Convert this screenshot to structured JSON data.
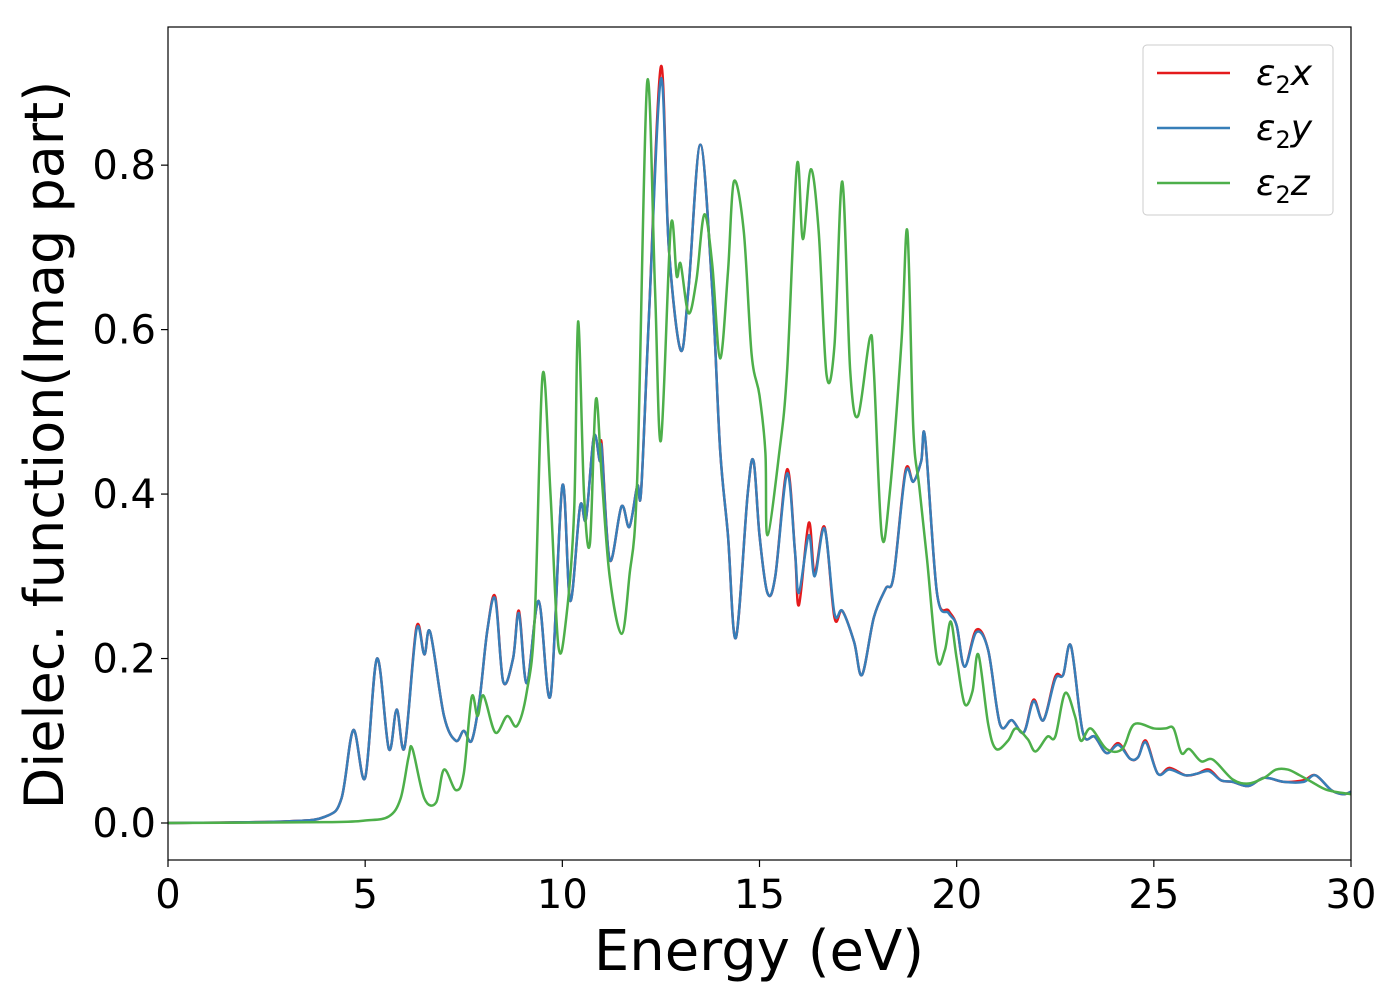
{
  "chart_data": {
    "type": "line",
    "title": "",
    "xlabel": "Energy (eV)",
    "ylabel": "Dielec. function(Imag part)",
    "xlim": [
      0,
      30
    ],
    "ylim": [
      -0.045,
      0.968
    ],
    "xticks": [
      0,
      5,
      10,
      15,
      20,
      25,
      30
    ],
    "xtick_labels": [
      "0",
      "5",
      "10",
      "15",
      "20",
      "25",
      "30"
    ],
    "yticks": [
      0.0,
      0.2,
      0.4,
      0.6,
      0.8
    ],
    "ytick_labels": [
      "0.0",
      "0.2",
      "0.4",
      "0.6",
      "0.8"
    ],
    "grid": false,
    "legend_position": "top-right",
    "series": [
      {
        "name": "ε2x",
        "label_base": "ε",
        "label_sub": "2",
        "label_var": "x",
        "color": "#e41a1c",
        "x": [
          0,
          3,
          4,
          4.4,
          4.7,
          5.0,
          5.3,
          5.6,
          5.8,
          6.0,
          6.3,
          6.5,
          6.65,
          7.0,
          7.3,
          7.5,
          7.7,
          7.9,
          8.1,
          8.3,
          8.5,
          8.75,
          8.9,
          9.1,
          9.4,
          9.7,
          10.0,
          10.2,
          10.45,
          10.6,
          10.8,
          10.95,
          11.0,
          11.2,
          11.5,
          11.7,
          11.9,
          12.0,
          12.2,
          12.5,
          12.7,
          13.0,
          13.2,
          13.5,
          13.8,
          14.0,
          14.2,
          14.4,
          14.7,
          14.85,
          15.0,
          15.2,
          15.4,
          15.7,
          15.9,
          16.0,
          16.25,
          16.4,
          16.65,
          16.9,
          17.1,
          17.4,
          17.6,
          17.9,
          18.2,
          18.4,
          18.7,
          18.9,
          19.1,
          19.2,
          19.5,
          19.8,
          20.0,
          20.2,
          20.5,
          20.8,
          21.1,
          21.4,
          21.7,
          21.95,
          22.2,
          22.5,
          22.7,
          22.9,
          23.2,
          23.5,
          23.8,
          24.1,
          24.4,
          24.6,
          24.8,
          25.1,
          25.4,
          25.8,
          26.1,
          26.4,
          26.7,
          27.0,
          27.4,
          27.8,
          28.3,
          28.8,
          29.1,
          29.5,
          29.8,
          30
        ],
        "y": [
          0,
          0.002,
          0.008,
          0.03,
          0.113,
          0.055,
          0.2,
          0.09,
          0.138,
          0.092,
          0.238,
          0.205,
          0.232,
          0.13,
          0.1,
          0.112,
          0.1,
          0.15,
          0.235,
          0.275,
          0.172,
          0.2,
          0.258,
          0.17,
          0.27,
          0.155,
          0.41,
          0.27,
          0.385,
          0.37,
          0.47,
          0.44,
          0.46,
          0.32,
          0.385,
          0.36,
          0.41,
          0.405,
          0.62,
          0.92,
          0.7,
          0.575,
          0.65,
          0.825,
          0.65,
          0.455,
          0.35,
          0.225,
          0.4,
          0.44,
          0.35,
          0.28,
          0.3,
          0.43,
          0.33,
          0.265,
          0.365,
          0.305,
          0.36,
          0.25,
          0.258,
          0.22,
          0.18,
          0.25,
          0.285,
          0.3,
          0.428,
          0.415,
          0.44,
          0.468,
          0.28,
          0.258,
          0.24,
          0.19,
          0.235,
          0.21,
          0.12,
          0.125,
          0.11,
          0.15,
          0.125,
          0.178,
          0.18,
          0.215,
          0.11,
          0.105,
          0.085,
          0.097,
          0.078,
          0.08,
          0.1,
          0.06,
          0.067,
          0.058,
          0.06,
          0.065,
          0.052,
          0.05,
          0.045,
          0.055,
          0.05,
          0.052,
          0.058,
          0.04,
          0.035,
          0.038
        ]
      },
      {
        "name": "ε2y",
        "label_base": "ε",
        "label_sub": "2",
        "label_var": "y",
        "color": "#377eb8",
        "x": [
          0,
          3,
          4,
          4.4,
          4.7,
          5.0,
          5.3,
          5.6,
          5.8,
          6.0,
          6.3,
          6.5,
          6.65,
          7.0,
          7.3,
          7.5,
          7.7,
          7.9,
          8.1,
          8.3,
          8.5,
          8.75,
          8.9,
          9.1,
          9.4,
          9.7,
          10.0,
          10.2,
          10.45,
          10.6,
          10.8,
          10.95,
          11.0,
          11.2,
          11.5,
          11.7,
          11.9,
          12.0,
          12.2,
          12.5,
          12.7,
          13.0,
          13.2,
          13.5,
          13.8,
          14.0,
          14.2,
          14.4,
          14.7,
          14.85,
          15.0,
          15.2,
          15.4,
          15.7,
          15.9,
          16.0,
          16.25,
          16.4,
          16.65,
          16.9,
          17.1,
          17.4,
          17.6,
          17.9,
          18.2,
          18.4,
          18.7,
          18.9,
          19.1,
          19.2,
          19.5,
          19.8,
          20.0,
          20.2,
          20.5,
          20.8,
          21.1,
          21.4,
          21.7,
          21.95,
          22.2,
          22.5,
          22.7,
          22.9,
          23.2,
          23.5,
          23.8,
          24.1,
          24.4,
          24.6,
          24.8,
          25.1,
          25.4,
          25.8,
          26.1,
          26.4,
          26.7,
          27.0,
          27.4,
          27.8,
          28.3,
          28.8,
          29.1,
          29.5,
          29.8,
          30
        ],
        "y": [
          0,
          0.002,
          0.008,
          0.03,
          0.113,
          0.055,
          0.2,
          0.09,
          0.138,
          0.092,
          0.235,
          0.205,
          0.232,
          0.13,
          0.1,
          0.112,
          0.1,
          0.15,
          0.235,
          0.272,
          0.172,
          0.2,
          0.255,
          0.17,
          0.27,
          0.155,
          0.41,
          0.27,
          0.385,
          0.37,
          0.47,
          0.44,
          0.455,
          0.32,
          0.385,
          0.36,
          0.41,
          0.405,
          0.62,
          0.905,
          0.7,
          0.575,
          0.65,
          0.825,
          0.65,
          0.455,
          0.35,
          0.225,
          0.4,
          0.44,
          0.35,
          0.28,
          0.3,
          0.425,
          0.33,
          0.28,
          0.35,
          0.3,
          0.358,
          0.255,
          0.258,
          0.22,
          0.18,
          0.25,
          0.285,
          0.3,
          0.425,
          0.415,
          0.44,
          0.468,
          0.28,
          0.255,
          0.24,
          0.19,
          0.232,
          0.21,
          0.12,
          0.125,
          0.11,
          0.148,
          0.125,
          0.175,
          0.18,
          0.215,
          0.11,
          0.105,
          0.085,
          0.095,
          0.078,
          0.08,
          0.098,
          0.06,
          0.065,
          0.058,
          0.06,
          0.063,
          0.052,
          0.05,
          0.045,
          0.055,
          0.05,
          0.05,
          0.058,
          0.04,
          0.035,
          0.038
        ]
      },
      {
        "name": "ε2z",
        "label_base": "ε",
        "label_sub": "2",
        "label_var": "z",
        "color": "#4daf4a",
        "x": [
          0,
          4,
          5,
          5.6,
          5.9,
          6.1,
          6.2,
          6.5,
          6.8,
          7.0,
          7.3,
          7.5,
          7.7,
          7.85,
          8.0,
          8.3,
          8.6,
          8.85,
          9.1,
          9.3,
          9.5,
          9.7,
          9.9,
          10.1,
          10.3,
          10.4,
          10.55,
          10.7,
          10.85,
          11.0,
          11.2,
          11.5,
          11.7,
          11.9,
          12.15,
          12.35,
          12.5,
          12.75,
          12.9,
          13.0,
          13.2,
          13.4,
          13.6,
          13.8,
          14.0,
          14.2,
          14.35,
          14.6,
          14.8,
          15.0,
          15.15,
          15.2,
          15.5,
          15.7,
          15.95,
          16.1,
          16.3,
          16.5,
          16.7,
          16.9,
          17.1,
          17.3,
          17.5,
          17.8,
          17.9,
          18.1,
          18.3,
          18.6,
          18.75,
          18.9,
          19.05,
          19.25,
          19.5,
          19.7,
          19.85,
          20.0,
          20.2,
          20.4,
          20.55,
          20.8,
          21.0,
          21.3,
          21.5,
          21.8,
          22.0,
          22.3,
          22.5,
          22.75,
          23.0,
          23.15,
          23.4,
          23.8,
          24.2,
          24.5,
          25.0,
          25.3,
          25.5,
          25.7,
          25.9,
          26.2,
          26.5,
          27.0,
          27.4,
          27.8,
          28.1,
          28.4,
          28.7,
          29.0,
          29.4,
          30
        ],
        "y": [
          0,
          0.001,
          0.003,
          0.008,
          0.03,
          0.08,
          0.09,
          0.03,
          0.025,
          0.065,
          0.04,
          0.06,
          0.153,
          0.13,
          0.155,
          0.11,
          0.13,
          0.118,
          0.16,
          0.25,
          0.545,
          0.4,
          0.215,
          0.25,
          0.38,
          0.61,
          0.4,
          0.34,
          0.515,
          0.42,
          0.3,
          0.23,
          0.3,
          0.42,
          0.9,
          0.65,
          0.465,
          0.725,
          0.665,
          0.68,
          0.62,
          0.66,
          0.74,
          0.68,
          0.565,
          0.67,
          0.78,
          0.72,
          0.57,
          0.52,
          0.45,
          0.35,
          0.45,
          0.55,
          0.8,
          0.71,
          0.795,
          0.72,
          0.545,
          0.58,
          0.78,
          0.55,
          0.495,
          0.59,
          0.55,
          0.35,
          0.4,
          0.585,
          0.72,
          0.48,
          0.41,
          0.32,
          0.2,
          0.21,
          0.245,
          0.2,
          0.145,
          0.16,
          0.205,
          0.12,
          0.09,
          0.1,
          0.115,
          0.102,
          0.087,
          0.105,
          0.105,
          0.158,
          0.13,
          0.1,
          0.115,
          0.09,
          0.09,
          0.12,
          0.115,
          0.115,
          0.115,
          0.085,
          0.09,
          0.075,
          0.077,
          0.053,
          0.048,
          0.055,
          0.065,
          0.065,
          0.058,
          0.05,
          0.04,
          0.035
        ]
      }
    ]
  }
}
